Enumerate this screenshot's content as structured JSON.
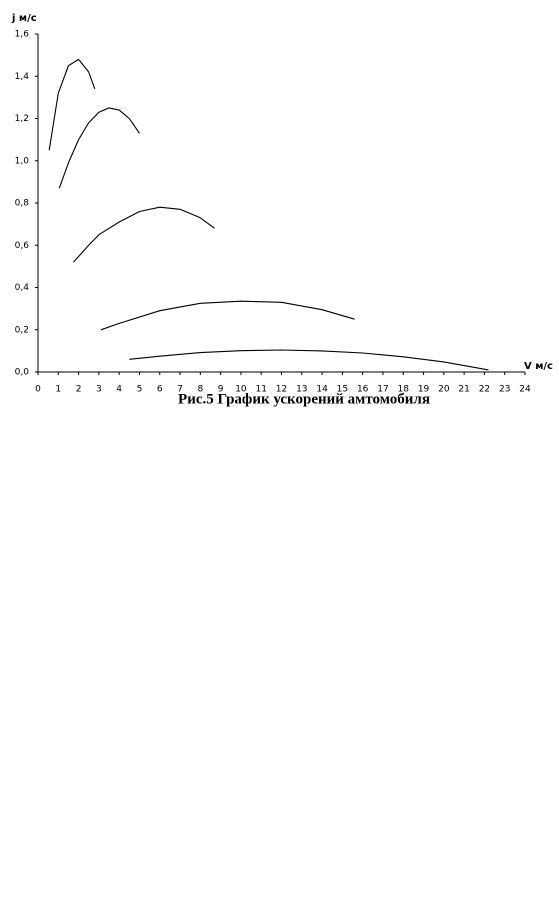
{
  "chart_data": {
    "type": "line",
    "y_label": "j м/с",
    "x_label": "V м/с",
    "caption": "Рис.5 График ускорений амтомобиля",
    "xlim": [
      0,
      24
    ],
    "xticks": [
      0,
      1,
      2,
      3,
      4,
      5,
      6,
      7,
      8,
      9,
      10,
      11,
      12,
      13,
      14,
      15,
      16,
      17,
      18,
      19,
      20,
      21,
      22,
      23,
      24
    ],
    "ylim": [
      0,
      1.6
    ],
    "yticks": [
      {
        "value": 0,
        "label": "0,0"
      },
      {
        "value": 0.2,
        "label": "0,2"
      },
      {
        "value": 0.4,
        "label": "0,4"
      },
      {
        "value": 0.6,
        "label": "0,6"
      },
      {
        "value": 0.8,
        "label": "0,8"
      },
      {
        "value": 1.0,
        "label": "1,0"
      },
      {
        "value": 1.2,
        "label": "1,2"
      },
      {
        "value": 1.4,
        "label": "1,4"
      },
      {
        "value": 1.6,
        "label": "1,6"
      }
    ],
    "series": [
      {
        "color": "#000000",
        "x": [
          0.55,
          1.0,
          1.5,
          2.0,
          2.5,
          2.8
        ],
        "values": [
          1.05,
          1.32,
          1.45,
          1.48,
          1.42,
          1.34
        ]
      },
      {
        "color": "#000000",
        "x": [
          1.05,
          1.5,
          2,
          2.5,
          3,
          3.5,
          4,
          4.5,
          5
        ],
        "values": [
          0.87,
          0.99,
          1.1,
          1.18,
          1.23,
          1.25,
          1.24,
          1.2,
          1.13
        ]
      },
      {
        "color": "#000000",
        "x": [
          1.75,
          2.5,
          3,
          4,
          5,
          6,
          7,
          8,
          8.7
        ],
        "values": [
          0.52,
          0.6,
          0.65,
          0.71,
          0.76,
          0.78,
          0.77,
          0.73,
          0.68
        ]
      },
      {
        "color": "#000000",
        "x": [
          3.1,
          4,
          6,
          8,
          10,
          12,
          14,
          15.6
        ],
        "values": [
          0.2,
          0.23,
          0.29,
          0.325,
          0.335,
          0.33,
          0.295,
          0.25
        ]
      },
      {
        "color": "#000000",
        "x": [
          4.5,
          6,
          8,
          10,
          12,
          14,
          16,
          18,
          20,
          22.2
        ],
        "values": [
          0.06,
          0.075,
          0.092,
          0.101,
          0.104,
          0.1,
          0.09,
          0.072,
          0.048,
          0.01
        ]
      }
    ]
  }
}
